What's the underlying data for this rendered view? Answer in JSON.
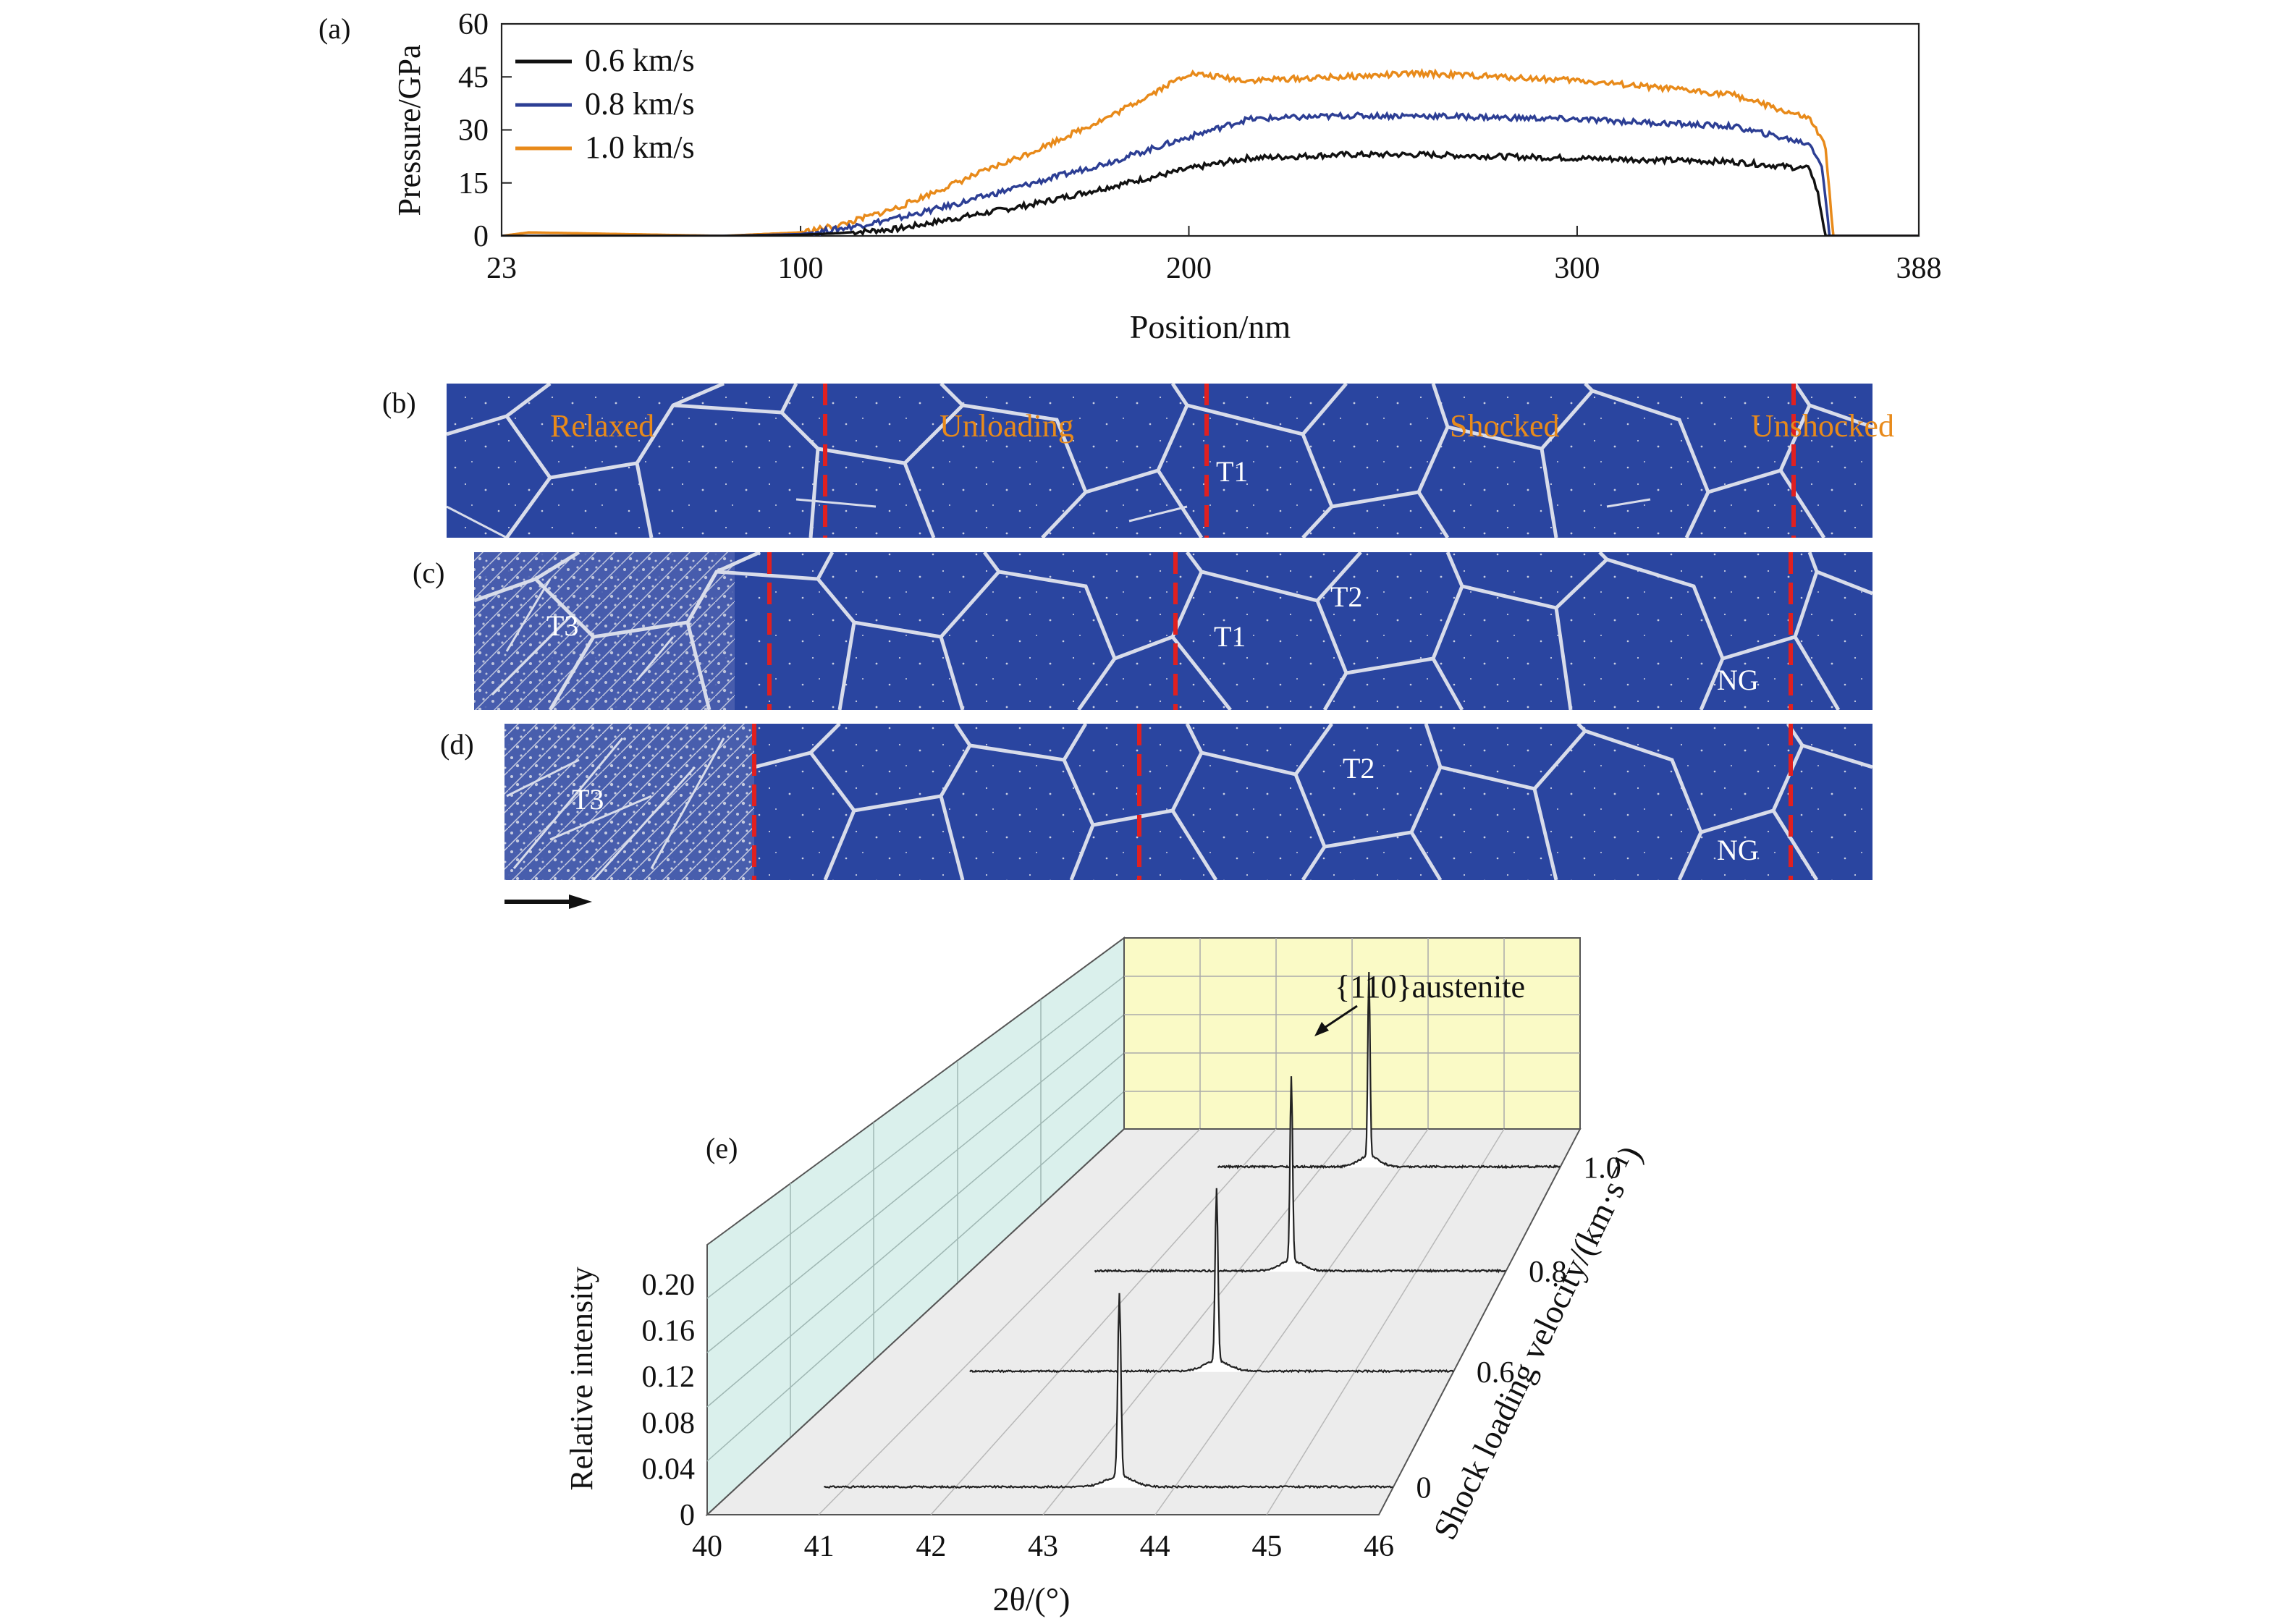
{
  "panel_labels": [
    "(a)",
    "(b)",
    "(c)",
    "(d)",
    "(e)"
  ],
  "colors": {
    "v06": "#111111",
    "v08": "#2c3e94",
    "v10": "#e88a1a",
    "grain": "#2a45a0",
    "boundary": "#d8dcea",
    "front": "#e02020",
    "zone_text": "#e88a1a"
  },
  "chart_data": [
    {
      "type": "line",
      "panel": "(a)",
      "title": "",
      "xlabel": "Position/nm",
      "ylabel": "Pressure/GPa",
      "xlim": [
        23,
        388
      ],
      "ylim": [
        0,
        60
      ],
      "x_ticks": [
        "23",
        "100",
        "200",
        "300",
        "388"
      ],
      "y_ticks": [
        "0",
        "15",
        "30",
        "45",
        "60"
      ],
      "legend": "top-left",
      "series": [
        {
          "name": "0.6 km/s",
          "x": [
            23,
            80,
            100,
            110,
            125,
            140,
            160,
            180,
            200,
            215,
            240,
            260,
            300,
            340,
            360,
            362,
            364,
            388
          ],
          "y": [
            0,
            0,
            0.3,
            0.8,
            2,
            5,
            9,
            14,
            19,
            22,
            23,
            23,
            22,
            21,
            19,
            12,
            0,
            0
          ]
        },
        {
          "name": "0.8 km/s",
          "x": [
            23,
            80,
            100,
            110,
            125,
            140,
            160,
            180,
            200,
            215,
            240,
            260,
            300,
            340,
            360,
            363,
            365,
            388
          ],
          "y": [
            0,
            0,
            0.5,
            2,
            5,
            9,
            15,
            21,
            28,
            33,
            34,
            34,
            33,
            31,
            26,
            20,
            0,
            0
          ]
        },
        {
          "name": "1.0 km/s",
          "x": [
            23,
            30,
            80,
            100,
            110,
            125,
            140,
            160,
            180,
            195,
            200,
            215,
            240,
            260,
            300,
            340,
            360,
            364,
            366,
            388
          ],
          "y": [
            0,
            1,
            0,
            1,
            3,
            8,
            15,
            24,
            34,
            43,
            46,
            44,
            45,
            46,
            44,
            40,
            33,
            25,
            0,
            0
          ]
        }
      ]
    },
    {
      "type": "line",
      "panel": "(e)",
      "title": "",
      "xlabel": "2θ/(°)",
      "ylabel": "Relative intensity",
      "zlabel": "Shock loading velocity/(km·s⁻¹)",
      "xlim": [
        40,
        46
      ],
      "ylim": [
        0,
        0.2
      ],
      "x_ticks": [
        "40",
        "41",
        "42",
        "43",
        "44",
        "45",
        "46"
      ],
      "y_ticks": [
        "0",
        "0.04",
        "0.08",
        "0.12",
        "0.16",
        "0.20"
      ],
      "z_ticks": [
        "0",
        "0.6",
        "0.8",
        "1.0"
      ],
      "annotation": "{110}austenite",
      "series": [
        {
          "name": "0",
          "peak_2theta": 43.5,
          "peak_intensity": 0.16
        },
        {
          "name": "0.6",
          "peak_2theta": 43.6,
          "peak_intensity": 0.15
        },
        {
          "name": "0.8",
          "peak_2theta": 43.6,
          "peak_intensity": 0.16
        },
        {
          "name": "1.0",
          "peak_2theta": 43.6,
          "peak_intensity": 0.16
        }
      ]
    }
  ],
  "microstructure": {
    "b": {
      "zones": [
        "Relaxed",
        "Unloading",
        "Shocked",
        "Unshocked"
      ],
      "twins": [
        "T1"
      ]
    },
    "c": {
      "twins": [
        "T3",
        "T1",
        "T2",
        "NG"
      ]
    },
    "d": {
      "twins": [
        "T3",
        "T2",
        "NG"
      ]
    }
  }
}
